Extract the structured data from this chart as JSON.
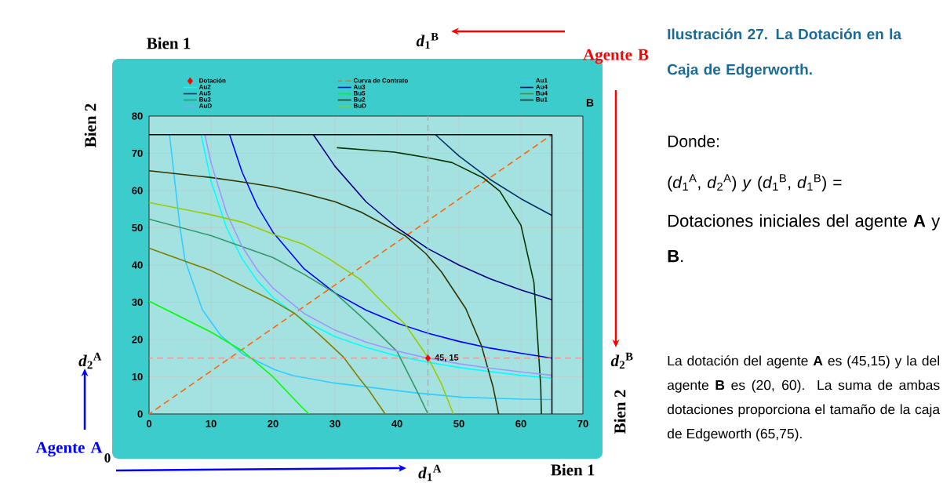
{
  "chart_data": {
    "type": "line",
    "title": "Ilustración 27. La Dotación en la Caja de Edgerworth.",
    "xlabel": "Bien 1",
    "ylabel": "Bien 2",
    "xlim": [
      0,
      70
    ],
    "ylim": [
      0,
      80
    ],
    "xticks": [
      0,
      10,
      20,
      30,
      40,
      50,
      60,
      70
    ],
    "yticks": [
      0,
      10,
      20,
      30,
      40,
      50,
      60,
      70,
      80
    ],
    "grid": true,
    "legend": "top",
    "marker": "none",
    "line_style": "solid",
    "series": [
      {
        "name": "Dotación",
        "type": "scatter",
        "marker": "diamond",
        "color": "#ff0000",
        "x": [
          45
        ],
        "values": [
          15
        ],
        "value_labels": [
          "45, 15"
        ]
      },
      {
        "name": "Curva de Contrato",
        "line_style": "dashed",
        "color": "#ff6600",
        "x": [
          0,
          65
        ],
        "values": [
          0,
          75
        ]
      },
      {
        "name": "Au1",
        "color": "#33ccff",
        "x": [
          3.3,
          5,
          5.8,
          8.6,
          11.6,
          15.2,
          20.3,
          23.2,
          29.5,
          34,
          43.4,
          50.6,
          60,
          65
        ],
        "values": [
          75,
          50,
          41.3,
          28,
          21,
          16,
          11.9,
          10.3,
          8.4,
          7.5,
          5.6,
          4.5,
          4,
          3.9
        ]
      },
      {
        "name": "Au2",
        "color": "#00ffff",
        "x": [
          8.4,
          10,
          12.5,
          15,
          17.5,
          20,
          25,
          30,
          35,
          40,
          45,
          50,
          55,
          60,
          65
        ],
        "values": [
          75,
          62.5,
          50,
          41.7,
          35.7,
          31.3,
          25,
          20.8,
          17.9,
          15.6,
          13.9,
          12.5,
          11.4,
          10.4,
          9.6
        ]
      },
      {
        "name": "Au3",
        "color": "#0000ff",
        "x": [
          13,
          15,
          17.5,
          20,
          25,
          30,
          35,
          40,
          45,
          50,
          55,
          60,
          65
        ],
        "values": [
          75,
          65,
          55.7,
          48.8,
          39,
          32.5,
          27.9,
          24.4,
          21.7,
          19.5,
          17.7,
          16.3,
          15
        ]
      },
      {
        "name": "Au4",
        "color": "#000080",
        "x": [
          26.5,
          30,
          35,
          40,
          45,
          50,
          55,
          60,
          65
        ],
        "values": [
          75,
          66.5,
          57,
          50,
          44.4,
          40,
          36.3,
          33.3,
          30.7
        ]
      },
      {
        "name": "Au5",
        "color": "#003366",
        "x": [
          46.2,
          50,
          55,
          60,
          65
        ],
        "values": [
          75,
          69.3,
          63,
          57.8,
          53.3
        ]
      },
      {
        "name": "Bu5",
        "color": "#00ff00",
        "x": [
          0,
          10,
          15,
          19.8,
          24.5,
          25.8
        ],
        "values": [
          30.3,
          22,
          17,
          10.3,
          2.1,
          0
        ]
      },
      {
        "name": "Bu4",
        "color": "#808000",
        "x": [
          0,
          10,
          20,
          23.5,
          27.5,
          31.3,
          34,
          35.5,
          38.1
        ],
        "values": [
          44.5,
          38.5,
          30.4,
          27,
          21.3,
          15.4,
          9.4,
          6.3,
          0
        ]
      },
      {
        "name": "Bu3",
        "color": "#339966",
        "x": [
          0,
          10,
          20,
          25,
          30,
          34.2,
          36,
          40,
          43.4,
          45
        ],
        "values": [
          52.3,
          47.9,
          42,
          37.5,
          32.5,
          26.2,
          23.4,
          16.8,
          5.6,
          0
        ]
      },
      {
        "name": "Bu2",
        "color": "#333300",
        "x": [
          0,
          10,
          15,
          20,
          25,
          30,
          34.2,
          41.3,
          44.7,
          47.2,
          51.1,
          53.6,
          55.5,
          56.4
        ],
        "values": [
          65.3,
          63.5,
          62.3,
          61,
          59.2,
          57,
          54.2,
          47.9,
          43,
          38.1,
          28.3,
          18.5,
          7.3,
          0
        ]
      },
      {
        "name": "Bu1",
        "color": "#003300",
        "x": [
          30.3,
          34.2,
          39.6,
          44.7,
          48.9,
          54,
          56.6,
          60,
          62.1,
          63.2,
          63.3
        ],
        "values": [
          71.5,
          71,
          70.3,
          68.9,
          67.5,
          63.3,
          59.8,
          50.7,
          35.3,
          7.3,
          0
        ]
      },
      {
        "name": "AuD",
        "color": "#9999ff",
        "x": [
          9,
          10,
          12.5,
          15,
          17.5,
          20,
          25,
          30,
          35,
          40,
          45,
          50,
          55,
          60,
          65
        ],
        "values": [
          75,
          67.5,
          54,
          45,
          38.6,
          33.8,
          27,
          22.5,
          19.3,
          16.9,
          15,
          13.5,
          12.3,
          11.3,
          10.4
        ]
      },
      {
        "name": "BuD",
        "color": "#99cc00",
        "x": [
          0,
          10,
          15,
          20,
          25,
          29.1,
          34.2,
          37,
          41.3,
          45,
          47.2,
          49.1
        ],
        "values": [
          56.8,
          53.5,
          51.5,
          48.3,
          45.5,
          41.6,
          36,
          31.1,
          24.1,
          15.2,
          8,
          0
        ]
      },
      {
        "color": "#000000",
        "x": [
          0,
          65,
          65
        ],
        "values": [
          75,
          75,
          0
        ]
      }
    ],
    "ref_lines": [
      {
        "axis": "x",
        "value": 45,
        "color": "#ff8080",
        "line_style": "dashed"
      },
      {
        "axis": "y",
        "value": 15,
        "color": "#ff8080",
        "line_style": "dashed"
      }
    ],
    "annotations": [
      "Bien 1",
      "*d*$_{1}$$^{B}$",
      "Agente B",
      "B",
      "Bien 2",
      "*d*$_{2}$$^{B}$",
      "*d*$_{2}$$^{A}$",
      "Agente A",
      "0",
      "*d*$_{1}$$^{A}$",
      "Donde:",
      "(*d*$_{1}$$^{A}$, *d*$_{2}$$^{A}$) *y* (*d*$_{1}$$^{B}$, *d*$_{1}$$^{B}$) =",
      "Dotaciones iniciales del agente **A** y **B**.",
      "La dotación del agente **A** es (45,15) y la del agente **B** es (20, 60). La suma de ambas dotaciones proporciona el tamaño de la caja de Edgeworth (65,75)."
    ]
  }
}
